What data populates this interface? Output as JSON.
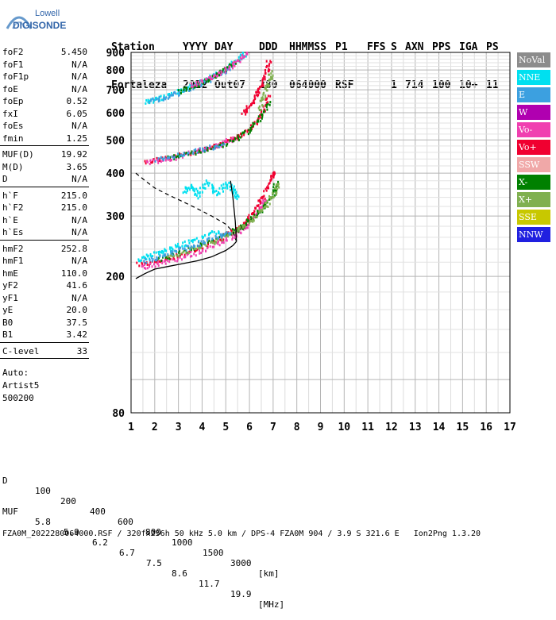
{
  "logo": {
    "line1": "Lowell",
    "line2": "DIGISONDE",
    "icon": "digisonde-logo"
  },
  "header": {
    "labels": [
      "Station",
      "YYYY",
      "DAY",
      "DDD",
      "HHMMSS",
      "P1",
      "FFS",
      "S",
      "AXN",
      "PPS",
      "IGA",
      "PS"
    ],
    "values": [
      "Fortaleza",
      "2022",
      "Out07",
      "280",
      "064000",
      "RSF",
      "",
      "1",
      "714",
      "100",
      "10+",
      "11"
    ]
  },
  "params": [
    {
      "label": "foF2",
      "value": "5.450"
    },
    {
      "label": "foF1",
      "value": "N/A"
    },
    {
      "label": "foF1p",
      "value": "N/A"
    },
    {
      "label": "foE",
      "value": "N/A"
    },
    {
      "label": "foEp",
      "value": "0.52"
    },
    {
      "label": "fxI",
      "value": "6.05"
    },
    {
      "label": "foEs",
      "value": "N/A"
    },
    {
      "label": "fmin",
      "value": "1.25"
    },
    {
      "label": "MUF(D)",
      "value": "19.92"
    },
    {
      "label": "M(D)",
      "value": "3.65"
    },
    {
      "label": "D",
      "value": "N/A"
    },
    {
      "label": "h`F",
      "value": "215.0"
    },
    {
      "label": "h`F2",
      "value": "215.0"
    },
    {
      "label": "h`E",
      "value": "N/A"
    },
    {
      "label": "h`Es",
      "value": "N/A"
    },
    {
      "label": "hmF2",
      "value": "252.8"
    },
    {
      "label": "hmF1",
      "value": "N/A"
    },
    {
      "label": "hmE",
      "value": "110.0"
    },
    {
      "label": "yF2",
      "value": "41.6"
    },
    {
      "label": "yF1",
      "value": "N/A"
    },
    {
      "label": "yE",
      "value": "20.0"
    },
    {
      "label": "B0",
      "value": "37.5"
    },
    {
      "label": "B1",
      "value": "3.42"
    },
    {
      "label": "C-level",
      "value": "33"
    }
  ],
  "auto": {
    "line1": "Auto:",
    "line2": "Artist5",
    "line3": "500200"
  },
  "legend": [
    {
      "label": "NoVal",
      "color": "#8c8c8c"
    },
    {
      "label": "NNE",
      "color": "#00e0f0"
    },
    {
      "label": "E",
      "color": "#3ca0e0"
    },
    {
      "label": "W",
      "color": "#b000b0"
    },
    {
      "label": "Vo-",
      "color": "#f040b0"
    },
    {
      "label": "Vo+",
      "color": "#f00030"
    },
    {
      "label": "SSW",
      "color": "#f0a8a8"
    },
    {
      "label": "X-",
      "color": "#008000"
    },
    {
      "label": "X+",
      "color": "#80b050"
    },
    {
      "label": "SSE",
      "color": "#c8c800"
    },
    {
      "label": "NNW",
      "color": "#2020e0"
    }
  ],
  "footer": {
    "d_label": "D",
    "d_values": [
      "100",
      "200",
      "400",
      "600",
      "800",
      "1000",
      "1500",
      "3000"
    ],
    "d_unit": "[km]",
    "muf_label": "MUF",
    "muf_values": [
      "5.8",
      "5.9",
      "6.2",
      "6.7",
      "7.5",
      "8.6",
      "11.7",
      "19.9"
    ],
    "muf_unit": "[MHz]",
    "file_line": "FZA0M_2022280064000.RSF / 320fx256h 50 kHz 5.0 km / DPS-4 FZA0M 904 / 3.9 S 321.6 E   Ion2Png 1.3.20"
  },
  "chart_data": {
    "type": "scatter",
    "title": "",
    "xlabel": "",
    "ylabel": "",
    "xlim": [
      1,
      17
    ],
    "ylim": [
      80,
      900
    ],
    "y_scale": "log",
    "x_ticks": [
      1,
      2,
      3,
      4,
      5,
      6,
      7,
      8,
      9,
      10,
      11,
      12,
      13,
      14,
      15,
      16,
      17
    ],
    "y_ticks": [
      80,
      200,
      300,
      400,
      500,
      600,
      700,
      800,
      900
    ],
    "grid": true,
    "legend_position": "right",
    "traces": [
      {
        "id": "1F-vo-plus",
        "f": [
          1.3,
          2.0,
          3.0,
          4.0,
          4.8,
          5.3,
          5.7,
          6.0,
          6.3,
          6.6,
          6.9,
          7.0
        ],
        "h": [
          218,
          222,
          232,
          245,
          260,
          272,
          285,
          300,
          320,
          350,
          390,
          410
        ],
        "color": "#f00030"
      },
      {
        "id": "1F-vo-minus",
        "f": [
          1.4,
          2.2,
          3.2,
          4.2,
          5.0,
          5.6,
          6.0,
          6.4,
          6.7
        ],
        "h": [
          214,
          220,
          230,
          242,
          258,
          272,
          290,
          315,
          340
        ],
        "color": "#f040b0"
      },
      {
        "id": "1F-x-minus",
        "f": [
          2.0,
          3.0,
          4.0,
          5.0,
          5.6,
          6.1,
          6.6,
          7.0,
          7.1
        ],
        "h": [
          224,
          236,
          250,
          266,
          280,
          298,
          322,
          350,
          380
        ],
        "color": "#008000"
      },
      {
        "id": "1F-x-plus",
        "f": [
          2.5,
          3.5,
          4.5,
          5.3,
          6.0,
          6.6,
          7.0,
          7.2
        ],
        "h": [
          228,
          240,
          255,
          270,
          290,
          320,
          350,
          380
        ],
        "color": "#80b050"
      },
      {
        "id": "1F-nne",
        "f": [
          1.3,
          1.8,
          2.5,
          3.2,
          4.0,
          4.8
        ],
        "h": [
          225,
          232,
          240,
          250,
          262,
          276
        ],
        "color": "#00e0f0"
      },
      {
        "id": "1F-e",
        "f": [
          1.5,
          2.2,
          3.0,
          3.8,
          4.6,
          5.2
        ],
        "h": [
          222,
          230,
          240,
          250,
          262,
          272
        ],
        "color": "#3ca0e0"
      },
      {
        "id": "oblique-cloud-nne",
        "f": [
          3.2,
          3.5,
          3.8,
          4.2,
          4.6,
          5.0,
          5.3,
          5.5
        ],
        "h": [
          355,
          370,
          345,
          380,
          350,
          375,
          360,
          340
        ],
        "color": "#00e0f0"
      },
      {
        "id": "2F-vo-plus",
        "f": [
          1.6,
          2.5,
          3.5,
          4.5,
          5.3,
          5.9,
          6.3,
          6.6,
          6.8
        ],
        "h": [
          435,
          445,
          462,
          482,
          505,
          535,
          570,
          620,
          680
        ],
        "color": "#f00030"
      },
      {
        "id": "2F-vo-minus",
        "f": [
          1.6,
          2.4,
          3.2,
          4.0,
          4.8,
          5.4
        ],
        "h": [
          432,
          440,
          455,
          470,
          490,
          512
        ],
        "color": "#f040b0"
      },
      {
        "id": "2F-x-minus",
        "f": [
          2.5,
          3.5,
          4.5,
          5.4,
          6.0,
          6.5,
          6.8
        ],
        "h": [
          445,
          460,
          478,
          505,
          540,
          590,
          650
        ],
        "color": "#008000"
      },
      {
        "id": "2F-e",
        "f": [
          2.0,
          3.0,
          4.0,
          5.0
        ],
        "h": [
          442,
          456,
          472,
          494
        ],
        "color": "#3ca0e0"
      },
      {
        "id": "3F-nne",
        "f": [
          1.6,
          2.0,
          2.6,
          3.2,
          3.8,
          4.4,
          5.0,
          5.5,
          5.8
        ],
        "h": [
          650,
          660,
          680,
          705,
          735,
          770,
          810,
          860,
          900
        ],
        "color": "#00e0f0"
      },
      {
        "id": "3F-e",
        "f": [
          1.8,
          2.4,
          3.0,
          3.6,
          4.2,
          4.8,
          5.3
        ],
        "h": [
          652,
          668,
          690,
          715,
          750,
          790,
          830
        ],
        "color": "#3ca0e0"
      },
      {
        "id": "3F-x-minus",
        "f": [
          3.0,
          3.8,
          4.5,
          5.0,
          5.5
        ],
        "h": [
          700,
          730,
          770,
          810,
          860
        ],
        "color": "#008000"
      },
      {
        "id": "3F-vo-minus",
        "f": [
          3.5,
          4.2,
          4.9,
          5.4,
          5.9
        ],
        "h": [
          720,
          760,
          800,
          850,
          900
        ],
        "color": "#f040b0"
      },
      {
        "id": "high-vo-plus",
        "f": [
          5.7,
          6.0,
          6.3,
          6.5,
          6.7,
          6.8
        ],
        "h": [
          600,
          640,
          690,
          740,
          800,
          860
        ],
        "color": "#f00030"
      },
      {
        "id": "high-x-plus",
        "f": [
          6.4,
          6.6,
          6.8,
          6.9
        ],
        "h": [
          620,
          680,
          740,
          800
        ],
        "color": "#80b050"
      }
    ],
    "profile_curve": {
      "f": [
        1.2,
        1.6,
        2.0,
        2.6,
        3.2,
        3.8,
        4.4,
        5.0,
        5.3,
        5.45
      ],
      "h": [
        197,
        204,
        210,
        214,
        218,
        222,
        228,
        238,
        246,
        252.8
      ]
    },
    "profile_upper": {
      "f": [
        5.45,
        5.4,
        5.3,
        5.2
      ],
      "h": [
        252.8,
        290,
        340,
        380
      ]
    },
    "dashed_curve": {
      "f": [
        1.2,
        1.6,
        2.0,
        2.6,
        3.2,
        3.8,
        4.4,
        5.0,
        5.3,
        5.45
      ],
      "h": [
        400,
        380,
        362,
        345,
        330,
        315,
        300,
        284,
        270,
        252.8
      ]
    }
  }
}
